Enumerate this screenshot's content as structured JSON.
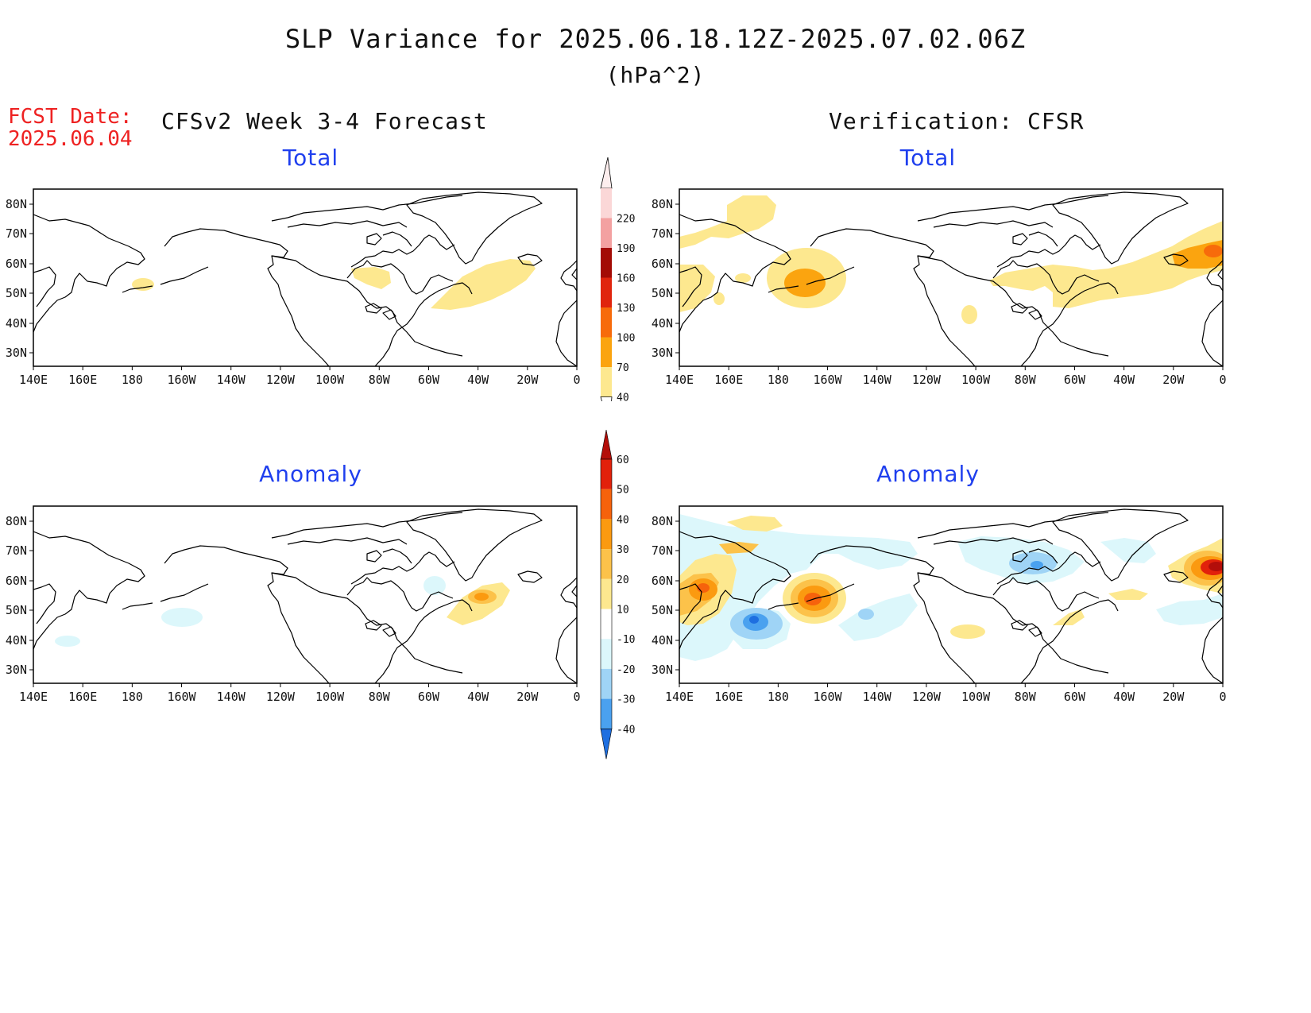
{
  "title": "SLP Variance for 2025.06.18.12Z-2025.07.02.06Z",
  "units": "(hPa^2)",
  "fcst_date": {
    "label": "FCST Date:",
    "value": "2025.06.04"
  },
  "left_column_title": "CFSv2 Week 3-4 Forecast",
  "right_column_title": "Verification: CFSR",
  "panels": {
    "total_label": "Total",
    "anomaly_label": "Anomaly"
  },
  "lat_labels": [
    "80N",
    "70N",
    "60N",
    "50N",
    "40N",
    "30N"
  ],
  "lon_labels": [
    "140E",
    "160E",
    "180",
    "160W",
    "140W",
    "120W",
    "100W",
    "80W",
    "60W",
    "40W",
    "20W",
    "0"
  ],
  "total_colorbar": {
    "levels": [
      "40",
      "70",
      "100",
      "130",
      "160",
      "190",
      "220"
    ],
    "colors": [
      "#fde88f",
      "#fba40f",
      "#f76b0b",
      "#e0250e",
      "#a30b05",
      "#f3a1a1",
      "#fbd7d7",
      "#fdeeee"
    ]
  },
  "anomaly_colorbar": {
    "levels": [
      "60",
      "50",
      "40",
      "30",
      "20",
      "10",
      "-10",
      "-20",
      "-30",
      "-40"
    ],
    "colors": [
      "#b30e0a",
      "#e2210b",
      "#f6620c",
      "#fb9a10",
      "#fcc24a",
      "#fde88f",
      "#ffffff",
      "#dcf7fb",
      "#9fd4f6",
      "#4aa1ef",
      "#1e6fe0"
    ]
  }
}
